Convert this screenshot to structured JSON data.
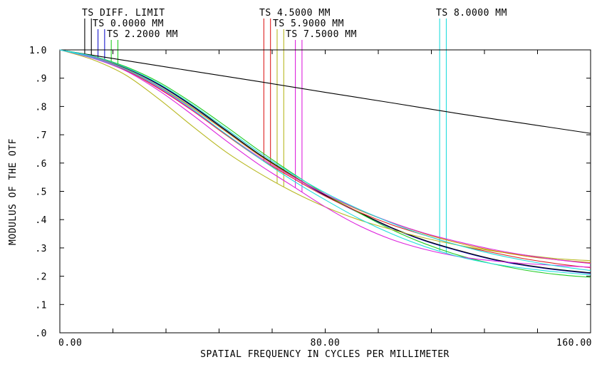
{
  "chart_data": {
    "type": "line",
    "title": "",
    "xlabel": "SPATIAL FREQUENCY IN CYCLES PER MILLIMETER",
    "ylabel": "MODULUS OF THE OTF",
    "xlim": [
      0,
      160
    ],
    "ylim": [
      0,
      1
    ],
    "x_ticks": [
      0,
      16,
      32,
      48,
      64,
      80,
      96,
      112,
      128,
      144,
      160
    ],
    "x_tick_labels": [
      {
        "value": 0,
        "label": "0.00"
      },
      {
        "value": 80,
        "label": "80.00"
      },
      {
        "value": 160,
        "label": "160.00"
      }
    ],
    "y_ticks": [
      {
        "value": 0.0,
        "label": ".0"
      },
      {
        "value": 0.1,
        "label": ".1"
      },
      {
        "value": 0.2,
        "label": ".2"
      },
      {
        "value": 0.3,
        "label": ".3"
      },
      {
        "value": 0.4,
        "label": ".4"
      },
      {
        "value": 0.5,
        "label": ".5"
      },
      {
        "value": 0.6,
        "label": ".6"
      },
      {
        "value": 0.7,
        "label": ".7"
      },
      {
        "value": 0.8,
        "label": ".8"
      },
      {
        "value": 0.9,
        "label": ".9"
      },
      {
        "value": 1.0,
        "label": "1.0"
      }
    ],
    "legend": [
      {
        "label": "TS DIFF. LIMIT",
        "marker_x": [
          7.5,
          9.5
        ],
        "color": "#000000"
      },
      {
        "label": "TS 0.0000 MM",
        "marker_x": [
          11.5,
          13.5
        ],
        "color": "#1a1acc"
      },
      {
        "label": "TS 2.2000 MM",
        "marker_x": [
          15.5,
          17.5
        ],
        "color": "#22cc22"
      },
      {
        "label": "TS 4.5000 MM",
        "marker_x": [
          61.5,
          63.5
        ],
        "color": "#dd2222"
      },
      {
        "label": "TS 5.9000 MM",
        "marker_x": [
          65.5,
          67.5
        ],
        "color": "#b8b822"
      },
      {
        "label": "TS 7.5000 MM",
        "marker_x": [
          71,
          73
        ],
        "color": "#dd22dd"
      },
      {
        "label": "TS 8.0000 MM",
        "marker_x": [
          114.5,
          116.5
        ],
        "color": "#22dddd"
      }
    ],
    "series": [
      {
        "color": "#000000",
        "x": [
          0,
          20,
          40,
          60,
          80,
          100,
          120,
          140,
          160
        ],
        "y": [
          1.0,
          0.962,
          0.925,
          0.888,
          0.85,
          0.813,
          0.775,
          0.74,
          0.705
        ]
      },
      {
        "color": "#1a1acc",
        "x": [
          0,
          10,
          20,
          30,
          40,
          50,
          60,
          70,
          80,
          90,
          100,
          110,
          120,
          130,
          140,
          150,
          160
        ],
        "y": [
          1.0,
          0.975,
          0.935,
          0.875,
          0.8,
          0.715,
          0.63,
          0.555,
          0.485,
          0.425,
          0.37,
          0.325,
          0.29,
          0.26,
          0.238,
          0.222,
          0.21
        ]
      },
      {
        "color": "#000000",
        "x": [
          0,
          10,
          20,
          30,
          40,
          50,
          60,
          70,
          80,
          90,
          100,
          110,
          120,
          130,
          140,
          150,
          160
        ],
        "y": [
          1.0,
          0.976,
          0.936,
          0.877,
          0.802,
          0.717,
          0.632,
          0.557,
          0.487,
          0.427,
          0.372,
          0.327,
          0.292,
          0.262,
          0.24,
          0.224,
          0.212
        ]
      },
      {
        "color": "#22cc22",
        "x": [
          0,
          10,
          20,
          30,
          40,
          50,
          60,
          70,
          80,
          90,
          100,
          110,
          120,
          130,
          140,
          150,
          160
        ],
        "y": [
          1.0,
          0.978,
          0.94,
          0.885,
          0.812,
          0.73,
          0.645,
          0.565,
          0.49,
          0.425,
          0.365,
          0.315,
          0.275,
          0.245,
          0.222,
          0.206,
          0.196
        ]
      },
      {
        "color": "#dd2222",
        "x": [
          0,
          10,
          20,
          30,
          40,
          50,
          60,
          70,
          80,
          90,
          100,
          110,
          120,
          130,
          140,
          150,
          160
        ],
        "y": [
          1.0,
          0.972,
          0.928,
          0.862,
          0.785,
          0.7,
          0.618,
          0.548,
          0.483,
          0.428,
          0.382,
          0.345,
          0.31,
          0.285,
          0.262,
          0.244,
          0.23
        ]
      },
      {
        "color": "#b8b822",
        "x": [
          0,
          10,
          20,
          30,
          40,
          50,
          60,
          70,
          80,
          90,
          100,
          110,
          120,
          130,
          140,
          150,
          160
        ],
        "y": [
          1.0,
          0.965,
          0.91,
          0.825,
          0.73,
          0.64,
          0.565,
          0.5,
          0.445,
          0.4,
          0.365,
          0.335,
          0.31,
          0.29,
          0.275,
          0.262,
          0.255
        ]
      },
      {
        "color": "#cc8800",
        "x": [
          0,
          10,
          20,
          30,
          40,
          50,
          60,
          70,
          80,
          90,
          100,
          110,
          120,
          130,
          140,
          150,
          160
        ],
        "y": [
          1.0,
          0.975,
          0.932,
          0.87,
          0.795,
          0.712,
          0.628,
          0.555,
          0.49,
          0.435,
          0.39,
          0.35,
          0.318,
          0.292,
          0.272,
          0.258,
          0.248
        ]
      },
      {
        "color": "#dd22dd",
        "x": [
          0,
          10,
          20,
          30,
          40,
          50,
          60,
          70,
          80,
          90,
          100,
          110,
          120,
          130,
          140,
          150,
          160
        ],
        "y": [
          1.0,
          0.97,
          0.925,
          0.855,
          0.77,
          0.68,
          0.595,
          0.52,
          0.445,
          0.38,
          0.33,
          0.295,
          0.27,
          0.255,
          0.245,
          0.238,
          0.232
        ]
      },
      {
        "color": "#dd22dd",
        "x": [
          0,
          10,
          20,
          30,
          40,
          50,
          60,
          70,
          80,
          90,
          100,
          110,
          120,
          130,
          140,
          150,
          160
        ],
        "y": [
          1.0,
          0.974,
          0.93,
          0.865,
          0.787,
          0.703,
          0.622,
          0.553,
          0.49,
          0.437,
          0.39,
          0.352,
          0.322,
          0.296,
          0.275,
          0.258,
          0.245
        ]
      },
      {
        "color": "#22dddd",
        "x": [
          0,
          10,
          20,
          30,
          40,
          50,
          60,
          70,
          80,
          90,
          100,
          110,
          120,
          130,
          140,
          150,
          160
        ],
        "y": [
          1.0,
          0.972,
          0.93,
          0.868,
          0.79,
          0.703,
          0.618,
          0.54,
          0.47,
          0.405,
          0.35,
          0.305,
          0.27,
          0.245,
          0.228,
          0.215,
          0.205
        ]
      },
      {
        "color": "#22dddd",
        "x": [
          0,
          10,
          20,
          30,
          40,
          50,
          60,
          70,
          80,
          90,
          100,
          110,
          120,
          130,
          140,
          150,
          160
        ],
        "y": [
          1.0,
          0.977,
          0.937,
          0.88,
          0.806,
          0.722,
          0.638,
          0.562,
          0.495,
          0.438,
          0.388,
          0.345,
          0.31,
          0.28,
          0.256,
          0.236,
          0.22
        ]
      }
    ]
  }
}
